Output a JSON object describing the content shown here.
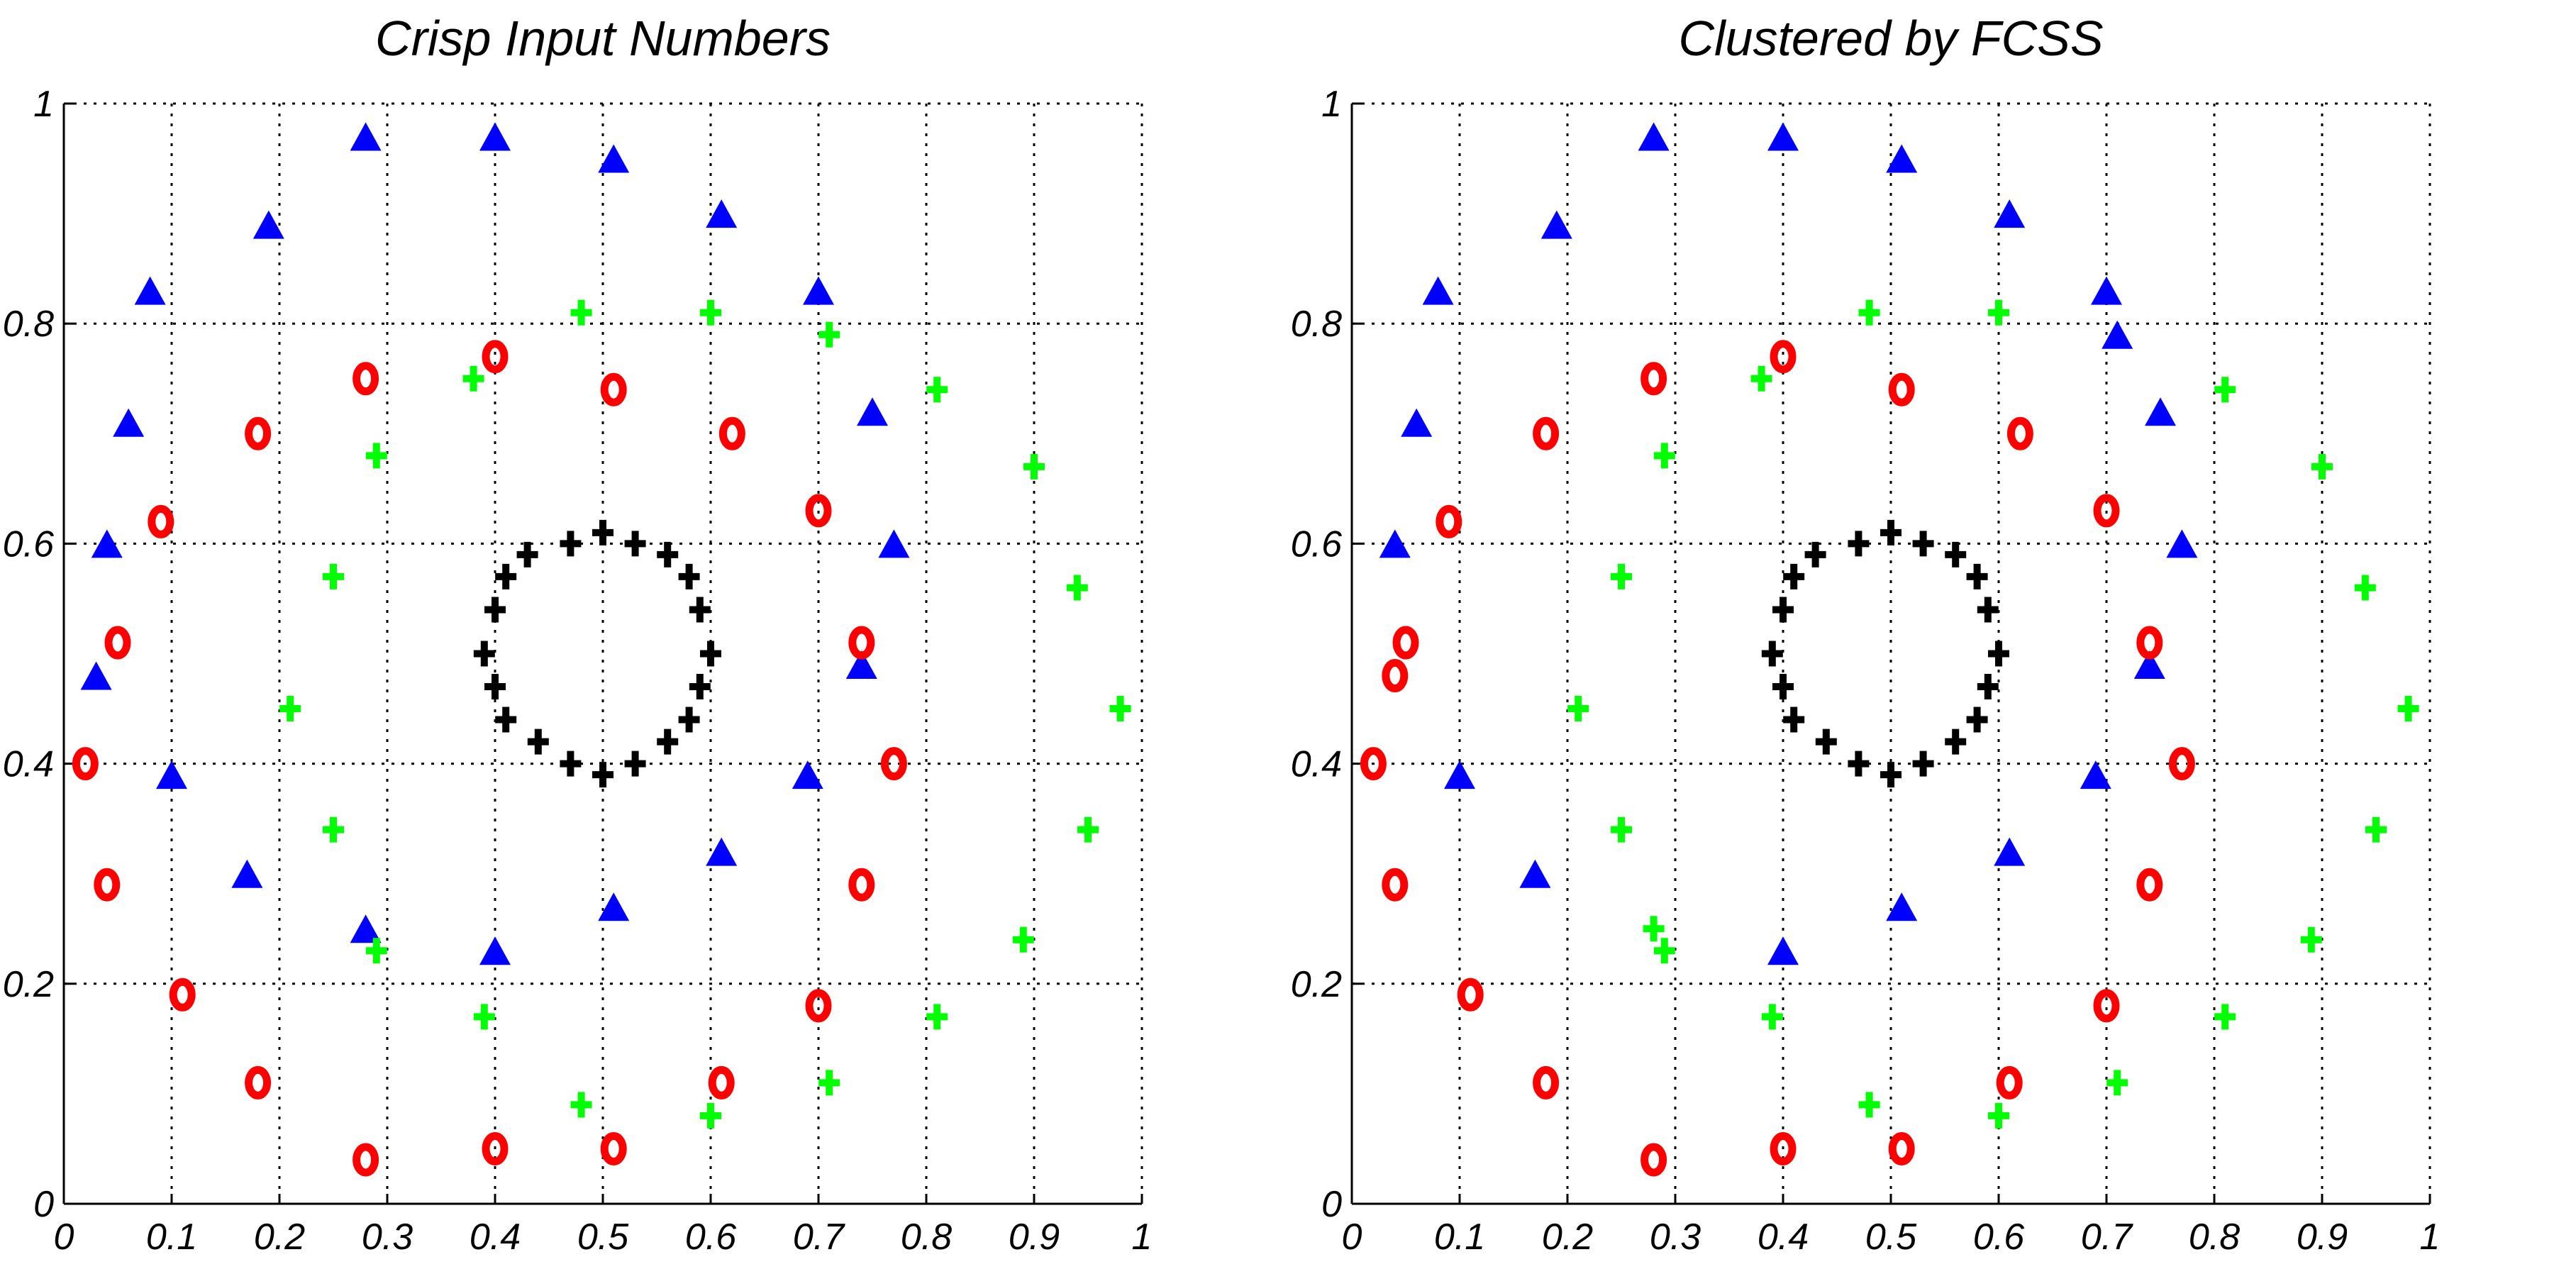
{
  "chart_data": [
    {
      "type": "scatter",
      "title": "Crisp Input Numbers",
      "xlabel": "",
      "ylabel": "",
      "xlim": [
        0,
        1
      ],
      "ylim": [
        0,
        1
      ],
      "xticks": [
        "0",
        "0.1",
        "0.2",
        "0.3",
        "0.4",
        "0.5",
        "0.6",
        "0.7",
        "0.8",
        "0.9",
        "1"
      ],
      "yticks": [
        "0",
        "0.2",
        "0.4",
        "0.6",
        "0.8",
        "1"
      ],
      "grid": true,
      "series": [
        {
          "marker": "triangle",
          "color": "#0000ff",
          "points": [
            [
              0.28,
              0.97
            ],
            [
              0.4,
              0.97
            ],
            [
              0.51,
              0.95
            ],
            [
              0.61,
              0.9
            ],
            [
              0.19,
              0.89
            ],
            [
              0.08,
              0.83
            ],
            [
              0.7,
              0.83
            ],
            [
              0.06,
              0.71
            ],
            [
              0.75,
              0.72
            ],
            [
              0.04,
              0.6
            ],
            [
              0.77,
              0.6
            ],
            [
              0.03,
              0.48
            ],
            [
              0.74,
              0.49
            ],
            [
              0.1,
              0.39
            ],
            [
              0.69,
              0.39
            ],
            [
              0.17,
              0.3
            ],
            [
              0.61,
              0.32
            ],
            [
              0.51,
              0.27
            ],
            [
              0.28,
              0.25
            ],
            [
              0.4,
              0.23
            ]
          ]
        },
        {
          "marker": "circle",
          "color": "#ff0000",
          "points": [
            [
              0.4,
              0.77
            ],
            [
              0.28,
              0.75
            ],
            [
              0.51,
              0.74
            ],
            [
              0.18,
              0.7
            ],
            [
              0.62,
              0.7
            ],
            [
              0.09,
              0.62
            ],
            [
              0.7,
              0.63
            ],
            [
              0.05,
              0.51
            ],
            [
              0.74,
              0.51
            ],
            [
              0.02,
              0.4
            ],
            [
              0.77,
              0.4
            ],
            [
              0.04,
              0.29
            ],
            [
              0.74,
              0.29
            ],
            [
              0.11,
              0.19
            ],
            [
              0.7,
              0.18
            ],
            [
              0.18,
              0.11
            ],
            [
              0.61,
              0.11
            ],
            [
              0.4,
              0.05
            ],
            [
              0.51,
              0.05
            ],
            [
              0.28,
              0.04
            ]
          ]
        },
        {
          "marker": "plus",
          "color": "#00ff00",
          "points": [
            [
              0.48,
              0.81
            ],
            [
              0.6,
              0.81
            ],
            [
              0.71,
              0.79
            ],
            [
              0.38,
              0.75
            ],
            [
              0.81,
              0.74
            ],
            [
              0.29,
              0.68
            ],
            [
              0.9,
              0.67
            ],
            [
              0.25,
              0.57
            ],
            [
              0.94,
              0.56
            ],
            [
              0.21,
              0.45
            ],
            [
              0.98,
              0.45
            ],
            [
              0.25,
              0.34
            ],
            [
              0.95,
              0.34
            ],
            [
              0.29,
              0.23
            ],
            [
              0.89,
              0.24
            ],
            [
              0.39,
              0.17
            ],
            [
              0.81,
              0.17
            ],
            [
              0.48,
              0.09
            ],
            [
              0.6,
              0.08
            ],
            [
              0.71,
              0.11
            ]
          ]
        },
        {
          "marker": "plus",
          "color": "#000000",
          "points": [
            [
              0.5,
              0.61
            ],
            [
              0.53,
              0.6
            ],
            [
              0.56,
              0.59
            ],
            [
              0.58,
              0.57
            ],
            [
              0.59,
              0.54
            ],
            [
              0.6,
              0.5
            ],
            [
              0.59,
              0.47
            ],
            [
              0.58,
              0.44
            ],
            [
              0.56,
              0.42
            ],
            [
              0.53,
              0.4
            ],
            [
              0.5,
              0.39
            ],
            [
              0.47,
              0.4
            ],
            [
              0.44,
              0.42
            ],
            [
              0.41,
              0.44
            ],
            [
              0.4,
              0.47
            ],
            [
              0.39,
              0.5
            ],
            [
              0.4,
              0.54
            ],
            [
              0.41,
              0.57
            ],
            [
              0.43,
              0.59
            ],
            [
              0.47,
              0.6
            ]
          ]
        }
      ]
    },
    {
      "type": "scatter",
      "title": "Clustered by FCSS",
      "xlabel": "",
      "ylabel": "",
      "xlim": [
        0,
        1
      ],
      "ylim": [
        0,
        1
      ],
      "xticks": [
        "0",
        "0.1",
        "0.2",
        "0.3",
        "0.4",
        "0.5",
        "0.6",
        "0.7",
        "0.8",
        "0.9",
        "1"
      ],
      "yticks": [
        "0",
        "0.2",
        "0.4",
        "0.6",
        "0.8",
        "1"
      ],
      "grid": true,
      "series": [
        {
          "marker": "triangle",
          "color": "#0000ff",
          "points": [
            [
              0.28,
              0.97
            ],
            [
              0.4,
              0.97
            ],
            [
              0.51,
              0.95
            ],
            [
              0.61,
              0.9
            ],
            [
              0.19,
              0.89
            ],
            [
              0.08,
              0.83
            ],
            [
              0.7,
              0.83
            ],
            [
              0.71,
              0.79
            ],
            [
              0.06,
              0.71
            ],
            [
              0.75,
              0.72
            ],
            [
              0.04,
              0.6
            ],
            [
              0.77,
              0.6
            ],
            [
              0.74,
              0.49
            ],
            [
              0.1,
              0.39
            ],
            [
              0.69,
              0.39
            ],
            [
              0.17,
              0.3
            ],
            [
              0.61,
              0.32
            ],
            [
              0.51,
              0.27
            ],
            [
              0.4,
              0.23
            ]
          ]
        },
        {
          "marker": "circle",
          "color": "#ff0000",
          "points": [
            [
              0.4,
              0.77
            ],
            [
              0.28,
              0.75
            ],
            [
              0.51,
              0.74
            ],
            [
              0.18,
              0.7
            ],
            [
              0.62,
              0.7
            ],
            [
              0.09,
              0.62
            ],
            [
              0.7,
              0.63
            ],
            [
              0.05,
              0.51
            ],
            [
              0.04,
              0.48
            ],
            [
              0.74,
              0.51
            ],
            [
              0.02,
              0.4
            ],
            [
              0.77,
              0.4
            ],
            [
              0.04,
              0.29
            ],
            [
              0.74,
              0.29
            ],
            [
              0.11,
              0.19
            ],
            [
              0.7,
              0.18
            ],
            [
              0.18,
              0.11
            ],
            [
              0.61,
              0.11
            ],
            [
              0.4,
              0.05
            ],
            [
              0.51,
              0.05
            ],
            [
              0.28,
              0.04
            ]
          ]
        },
        {
          "marker": "plus",
          "color": "#00ff00",
          "points": [
            [
              0.48,
              0.81
            ],
            [
              0.6,
              0.81
            ],
            [
              0.38,
              0.75
            ],
            [
              0.81,
              0.74
            ],
            [
              0.29,
              0.68
            ],
            [
              0.9,
              0.67
            ],
            [
              0.25,
              0.57
            ],
            [
              0.94,
              0.56
            ],
            [
              0.21,
              0.45
            ],
            [
              0.98,
              0.45
            ],
            [
              0.25,
              0.34
            ],
            [
              0.95,
              0.34
            ],
            [
              0.28,
              0.25
            ],
            [
              0.29,
              0.23
            ],
            [
              0.89,
              0.24
            ],
            [
              0.39,
              0.17
            ],
            [
              0.81,
              0.17
            ],
            [
              0.48,
              0.09
            ],
            [
              0.6,
              0.08
            ],
            [
              0.71,
              0.11
            ]
          ]
        },
        {
          "marker": "plus",
          "color": "#000000",
          "points": [
            [
              0.5,
              0.61
            ],
            [
              0.53,
              0.6
            ],
            [
              0.56,
              0.59
            ],
            [
              0.58,
              0.57
            ],
            [
              0.59,
              0.54
            ],
            [
              0.6,
              0.5
            ],
            [
              0.59,
              0.47
            ],
            [
              0.58,
              0.44
            ],
            [
              0.56,
              0.42
            ],
            [
              0.53,
              0.4
            ],
            [
              0.5,
              0.39
            ],
            [
              0.47,
              0.4
            ],
            [
              0.44,
              0.42
            ],
            [
              0.41,
              0.44
            ],
            [
              0.4,
              0.47
            ],
            [
              0.39,
              0.5
            ],
            [
              0.4,
              0.54
            ],
            [
              0.41,
              0.57
            ],
            [
              0.43,
              0.59
            ],
            [
              0.47,
              0.6
            ]
          ]
        }
      ]
    }
  ]
}
